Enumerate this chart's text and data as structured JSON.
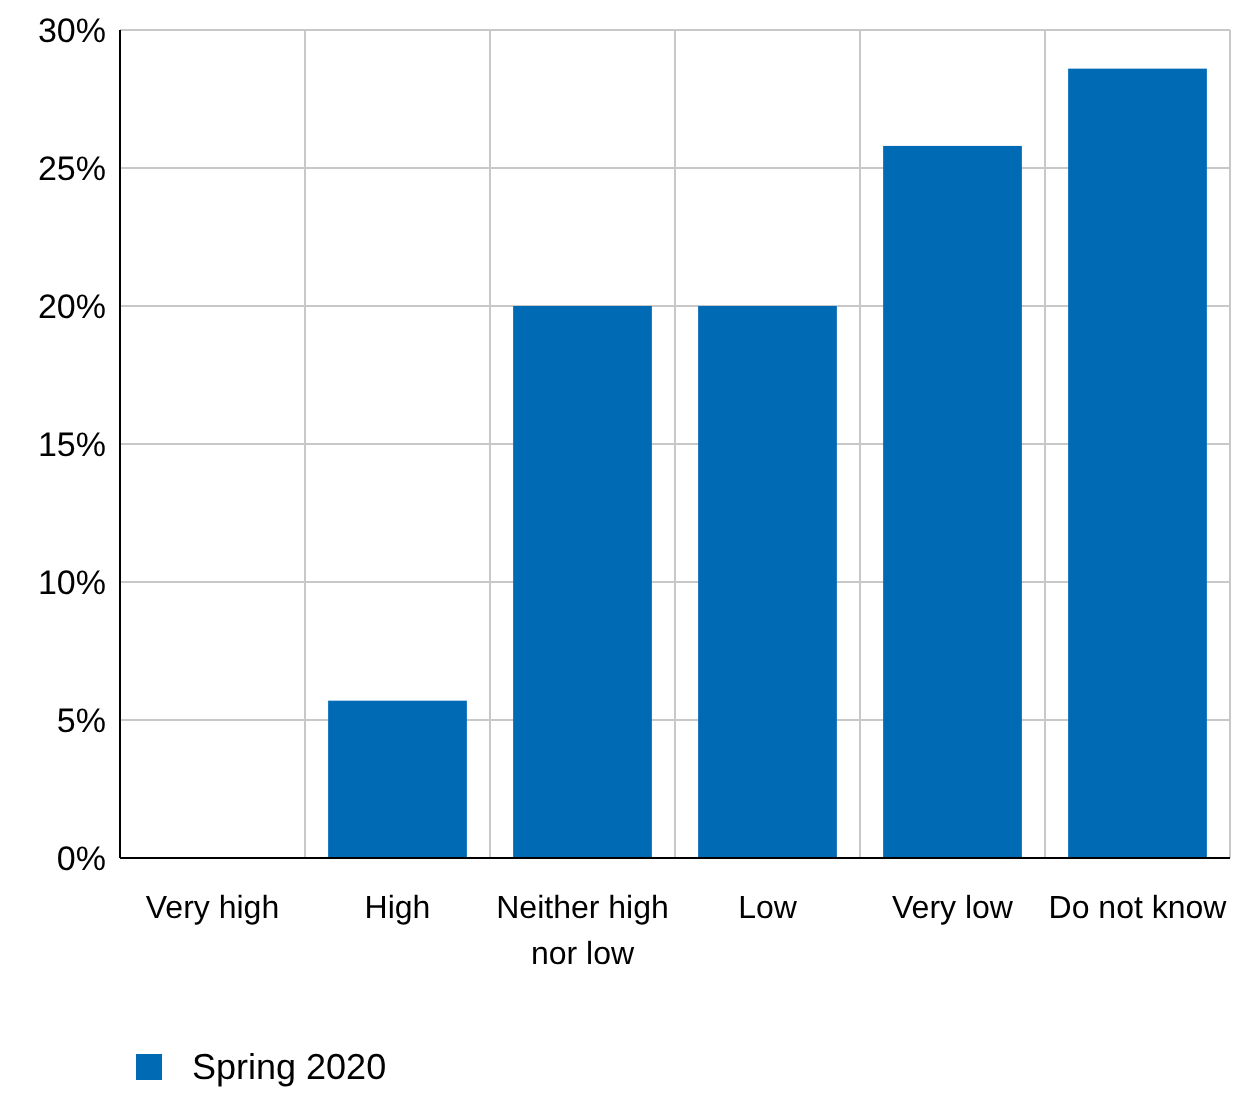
{
  "chart_data": {
    "type": "bar",
    "categories": [
      "Very high",
      "High",
      "Neither high nor low",
      "Low",
      "Very low",
      "Do not know"
    ],
    "series": [
      {
        "name": "Spring 2020",
        "color": "#006ab4",
        "values": [
          0,
          5.7,
          20,
          20,
          25.8,
          28.6
        ]
      }
    ],
    "ylim": [
      0,
      30
    ],
    "yticks": [
      {
        "value": 0,
        "label": "0%"
      },
      {
        "value": 5,
        "label": "5%"
      },
      {
        "value": 10,
        "label": "10%"
      },
      {
        "value": 15,
        "label": "15%"
      },
      {
        "value": 20,
        "label": "20%"
      },
      {
        "value": 25,
        "label": "25%"
      },
      {
        "value": 30,
        "label": "30%"
      }
    ],
    "grid": true,
    "legend": "bottom left"
  }
}
